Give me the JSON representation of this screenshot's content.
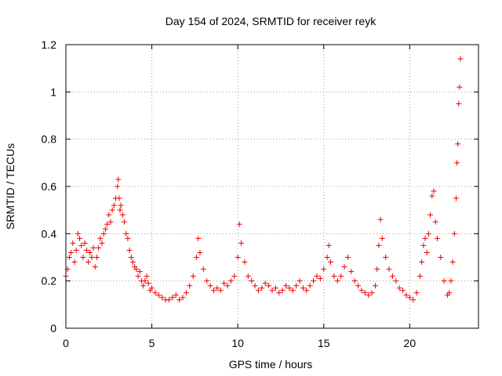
{
  "chart_data": {
    "type": "scatter",
    "title": "Day 154 of 2024, SRMTID for receiver reyk",
    "xlabel": "GPS time / hours",
    "ylabel": "SRMTID / TECUs",
    "xlim": [
      0,
      24
    ],
    "ylim": [
      0,
      1.2
    ],
    "xticks": [
      0,
      5,
      10,
      15,
      20
    ],
    "xtick_labels": [
      "0",
      "5",
      "10",
      "15",
      "20"
    ],
    "yticks": [
      0,
      0.2,
      0.4,
      0.6,
      0.8,
      1.0,
      1.2
    ],
    "ytick_labels": [
      "0",
      "0.2",
      "0.4",
      "0.6",
      "0.8",
      "1",
      "1.2"
    ],
    "grid": true,
    "marker": "plus",
    "series": [
      {
        "name": "SRMTID",
        "color": "#ee0000",
        "x": [
          0.0,
          0.1,
          0.2,
          0.3,
          0.4,
          0.5,
          0.6,
          0.7,
          0.8,
          0.9,
          1.0,
          1.1,
          1.2,
          1.3,
          1.4,
          1.5,
          1.6,
          1.7,
          1.8,
          1.9,
          2.0,
          2.1,
          2.2,
          2.3,
          2.4,
          2.5,
          2.6,
          2.7,
          2.8,
          2.9,
          3.0,
          3.05,
          3.1,
          3.15,
          3.2,
          3.3,
          3.4,
          3.5,
          3.6,
          3.7,
          3.8,
          3.9,
          4.0,
          4.1,
          4.2,
          4.3,
          4.4,
          4.5,
          4.6,
          4.7,
          4.8,
          4.9,
          5.0,
          5.2,
          5.4,
          5.6,
          5.8,
          6.0,
          6.2,
          6.4,
          6.6,
          6.8,
          7.0,
          7.2,
          7.4,
          7.6,
          7.7,
          7.8,
          8.0,
          8.2,
          8.4,
          8.6,
          8.8,
          9.0,
          9.2,
          9.4,
          9.6,
          9.8,
          10.0,
          10.1,
          10.2,
          10.4,
          10.6,
          10.8,
          11.0,
          11.2,
          11.4,
          11.6,
          11.8,
          12.0,
          12.2,
          12.4,
          12.6,
          12.8,
          13.0,
          13.2,
          13.4,
          13.6,
          13.8,
          14.0,
          14.2,
          14.4,
          14.6,
          14.8,
          15.0,
          15.2,
          15.3,
          15.4,
          15.6,
          15.8,
          16.0,
          16.2,
          16.4,
          16.6,
          16.8,
          17.0,
          17.2,
          17.4,
          17.6,
          17.8,
          18.0,
          18.1,
          18.2,
          18.3,
          18.4,
          18.6,
          18.8,
          19.0,
          19.2,
          19.4,
          19.6,
          19.8,
          20.0,
          20.2,
          20.4,
          20.6,
          20.7,
          20.8,
          20.9,
          21.0,
          21.1,
          21.2,
          21.3,
          21.4,
          21.5,
          21.6,
          21.8,
          22.0,
          22.2,
          22.3,
          22.4,
          22.5,
          22.6,
          22.7,
          22.75,
          22.8,
          22.85,
          22.9,
          22.95
        ],
        "y": [
          0.22,
          0.25,
          0.3,
          0.32,
          0.36,
          0.28,
          0.33,
          0.4,
          0.38,
          0.35,
          0.3,
          0.36,
          0.33,
          0.28,
          0.32,
          0.3,
          0.34,
          0.26,
          0.3,
          0.34,
          0.38,
          0.36,
          0.4,
          0.42,
          0.44,
          0.48,
          0.45,
          0.5,
          0.52,
          0.55,
          0.6,
          0.63,
          0.55,
          0.5,
          0.52,
          0.48,
          0.45,
          0.4,
          0.38,
          0.33,
          0.3,
          0.28,
          0.26,
          0.25,
          0.22,
          0.24,
          0.2,
          0.18,
          0.2,
          0.22,
          0.19,
          0.16,
          0.17,
          0.15,
          0.14,
          0.13,
          0.12,
          0.12,
          0.13,
          0.14,
          0.12,
          0.13,
          0.15,
          0.18,
          0.22,
          0.3,
          0.38,
          0.32,
          0.25,
          0.2,
          0.18,
          0.16,
          0.17,
          0.16,
          0.19,
          0.18,
          0.2,
          0.22,
          0.3,
          0.44,
          0.36,
          0.28,
          0.22,
          0.2,
          0.18,
          0.16,
          0.17,
          0.19,
          0.18,
          0.16,
          0.17,
          0.15,
          0.16,
          0.18,
          0.17,
          0.16,
          0.18,
          0.2,
          0.17,
          0.16,
          0.18,
          0.2,
          0.22,
          0.21,
          0.25,
          0.3,
          0.35,
          0.28,
          0.22,
          0.2,
          0.22,
          0.26,
          0.3,
          0.24,
          0.2,
          0.18,
          0.16,
          0.15,
          0.14,
          0.15,
          0.18,
          0.25,
          0.35,
          0.46,
          0.38,
          0.3,
          0.25,
          0.22,
          0.2,
          0.17,
          0.16,
          0.14,
          0.13,
          0.12,
          0.15,
          0.22,
          0.28,
          0.35,
          0.38,
          0.32,
          0.4,
          0.48,
          0.56,
          0.58,
          0.45,
          0.38,
          0.3,
          0.2,
          0.14,
          0.15,
          0.2,
          0.28,
          0.4,
          0.55,
          0.7,
          0.78,
          0.95,
          1.02,
          1.14
        ]
      }
    ]
  }
}
